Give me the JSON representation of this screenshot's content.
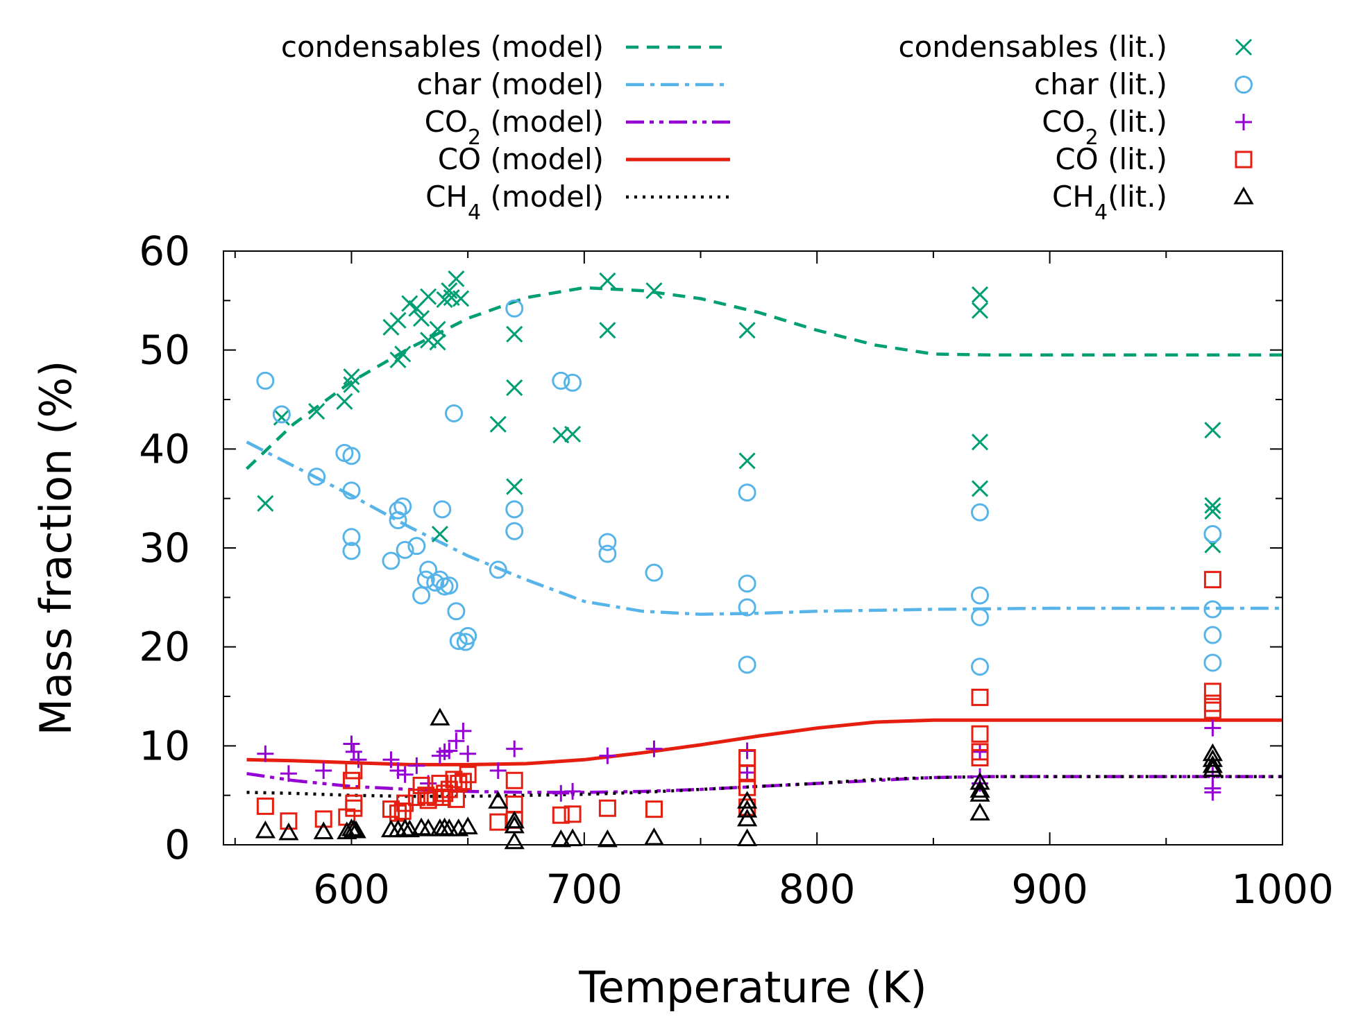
{
  "chart_data": {
    "type": "scatter",
    "title": "",
    "xlabel": "Temperature (K)",
    "ylabel": "Mass fraction (%)",
    "xlim": [
      545,
      1000
    ],
    "ylim": [
      0,
      60
    ],
    "xticks": [
      600,
      700,
      800,
      900,
      1000
    ],
    "yticks": [
      0,
      10,
      20,
      30,
      40,
      50,
      60
    ],
    "xtick_labels": [
      "600",
      "700",
      "800",
      "900",
      "1000"
    ],
    "ytick_labels": [
      "0",
      "10",
      "20",
      "30",
      "40",
      "50",
      "60"
    ],
    "grid": false,
    "legend_position": "top",
    "model_series": [
      {
        "name": "condensables (model)",
        "label_main": "condensables",
        "label_sub": "",
        "label_tail": " (model)",
        "color": "#009e73",
        "dash": "18,12",
        "x": [
          555,
          575,
          600,
          625,
          650,
          675,
          700,
          725,
          750,
          775,
          800,
          825,
          850,
          875,
          900,
          950,
          1000
        ],
        "y": [
          38.0,
          42.5,
          46.8,
          50.2,
          53.2,
          55.3,
          56.3,
          56.0,
          55.2,
          53.8,
          52.0,
          50.5,
          49.6,
          49.5,
          49.5,
          49.5,
          49.5
        ]
      },
      {
        "name": "char (model)",
        "label_main": "char",
        "label_sub": "",
        "label_tail": " (model)",
        "color": "#56b4e9",
        "dash": "26,9,6,9",
        "x": [
          555,
          575,
          600,
          625,
          650,
          675,
          700,
          725,
          750,
          775,
          800,
          850,
          900,
          950,
          1000
        ],
        "y": [
          40.7,
          38.3,
          35.3,
          32.1,
          29.2,
          26.8,
          24.6,
          23.6,
          23.3,
          23.4,
          23.6,
          23.8,
          23.9,
          23.9,
          23.9
        ]
      },
      {
        "name": "CO2 (model)",
        "label_main": "CO",
        "label_sub": "2",
        "label_tail": " (model)",
        "color": "#9400d3",
        "dash": "26,8,6,8,6,8",
        "x": [
          555,
          575,
          600,
          625,
          650,
          675,
          700,
          725,
          750,
          775,
          800,
          825,
          850,
          875,
          900,
          950,
          1000
        ],
        "y": [
          7.2,
          6.5,
          5.9,
          5.6,
          5.4,
          5.3,
          5.3,
          5.4,
          5.6,
          5.9,
          6.2,
          6.5,
          6.8,
          6.9,
          6.9,
          6.9,
          6.9
        ]
      },
      {
        "name": "CO (model)",
        "label_main": "CO",
        "label_sub": "",
        "label_tail": " (model)",
        "color": "#e51e10",
        "dash": "",
        "x": [
          555,
          575,
          600,
          625,
          650,
          675,
          700,
          725,
          750,
          775,
          800,
          825,
          850,
          875,
          900,
          950,
          1000
        ],
        "y": [
          8.6,
          8.5,
          8.3,
          8.1,
          8.1,
          8.2,
          8.6,
          9.3,
          10.1,
          11.0,
          11.8,
          12.4,
          12.6,
          12.6,
          12.6,
          12.6,
          12.6
        ]
      },
      {
        "name": "CH4 (model)",
        "label_main": "CH",
        "label_sub": "4",
        "label_tail": " (model)",
        "color": "#000000",
        "dash": "4,8",
        "x": [
          555,
          575,
          600,
          625,
          650,
          675,
          700,
          725,
          750,
          775,
          800,
          825,
          850,
          875,
          900,
          950,
          1000
        ],
        "y": [
          5.3,
          5.2,
          5.0,
          4.9,
          4.9,
          5.0,
          5.1,
          5.3,
          5.6,
          5.9,
          6.2,
          6.6,
          6.8,
          6.9,
          6.9,
          6.9,
          6.9
        ]
      }
    ],
    "literature_series": [
      {
        "name": "condensables (lit.)",
        "label_main": "condensables",
        "label_sub": "",
        "label_tail": " (lit.)",
        "color": "#009e73",
        "marker": "x",
        "points": [
          [
            563,
            34.5
          ],
          [
            570,
            43.2
          ],
          [
            585,
            43.8
          ],
          [
            597,
            44.8
          ],
          [
            600,
            46.5
          ],
          [
            600,
            47.3
          ],
          [
            617,
            52.3
          ],
          [
            620,
            53.0
          ],
          [
            620,
            49.0
          ],
          [
            622,
            49.6
          ],
          [
            625,
            54.7
          ],
          [
            628,
            54.2
          ],
          [
            630,
            53.2
          ],
          [
            633,
            51.0
          ],
          [
            633,
            55.4
          ],
          [
            637,
            52.1
          ],
          [
            637,
            50.8
          ],
          [
            640,
            55.1
          ],
          [
            642,
            56.0
          ],
          [
            643,
            55.3
          ],
          [
            645,
            57.2
          ],
          [
            647,
            55.2
          ],
          [
            638,
            31.4
          ],
          [
            663,
            42.5
          ],
          [
            670,
            51.6
          ],
          [
            670,
            46.2
          ],
          [
            670,
            36.2
          ],
          [
            690,
            41.4
          ],
          [
            695,
            41.5
          ],
          [
            710,
            57.0
          ],
          [
            710,
            52.0
          ],
          [
            730,
            56.0
          ],
          [
            770,
            52.0
          ],
          [
            770,
            38.8
          ],
          [
            870,
            55.6
          ],
          [
            870,
            54.0
          ],
          [
            870,
            40.7
          ],
          [
            870,
            36.0
          ],
          [
            970,
            41.9
          ],
          [
            970,
            34.3
          ],
          [
            970,
            33.7
          ],
          [
            970,
            30.3
          ]
        ]
      },
      {
        "name": "char (lit.)",
        "label_main": "char",
        "label_sub": "",
        "label_tail": " (lit.)",
        "color": "#56b4e9",
        "marker": "o",
        "points": [
          [
            563,
            46.9
          ],
          [
            570,
            43.5
          ],
          [
            585,
            37.2
          ],
          [
            597,
            39.6
          ],
          [
            600,
            39.3
          ],
          [
            600,
            35.8
          ],
          [
            600,
            31.1
          ],
          [
            600,
            29.7
          ],
          [
            617,
            28.7
          ],
          [
            620,
            33.8
          ],
          [
            620,
            32.8
          ],
          [
            622,
            34.2
          ],
          [
            623,
            29.8
          ],
          [
            628,
            30.2
          ],
          [
            630,
            25.2
          ],
          [
            632,
            26.8
          ],
          [
            633,
            27.8
          ],
          [
            636,
            26.5
          ],
          [
            638,
            26.8
          ],
          [
            639,
            33.9
          ],
          [
            640,
            26.1
          ],
          [
            642,
            26.2
          ],
          [
            644,
            43.6
          ],
          [
            645,
            23.6
          ],
          [
            646,
            20.6
          ],
          [
            649,
            20.5
          ],
          [
            650,
            21.1
          ],
          [
            663,
            27.8
          ],
          [
            670,
            54.2
          ],
          [
            670,
            33.9
          ],
          [
            670,
            31.7
          ],
          [
            690,
            46.9
          ],
          [
            695,
            46.7
          ],
          [
            710,
            30.6
          ],
          [
            710,
            29.4
          ],
          [
            730,
            27.5
          ],
          [
            770,
            35.6
          ],
          [
            770,
            26.4
          ],
          [
            770,
            24.0
          ],
          [
            770,
            18.2
          ],
          [
            870,
            33.6
          ],
          [
            870,
            25.2
          ],
          [
            870,
            23.0
          ],
          [
            870,
            18.0
          ],
          [
            970,
            31.4
          ],
          [
            970,
            23.8
          ],
          [
            970,
            21.2
          ],
          [
            970,
            18.4
          ]
        ]
      },
      {
        "name": "CO2 (lit.)",
        "label_main": "CO",
        "label_sub": "2",
        "label_tail": " (lit.)",
        "color": "#9400d3",
        "marker": "+",
        "points": [
          [
            563,
            9.2
          ],
          [
            573,
            7.2
          ],
          [
            588,
            7.5
          ],
          [
            600,
            10.2
          ],
          [
            601,
            9.4
          ],
          [
            603,
            8.6
          ],
          [
            617,
            8.6
          ],
          [
            620,
            7.5
          ],
          [
            623,
            7.1
          ],
          [
            628,
            8.0
          ],
          [
            633,
            6.2
          ],
          [
            638,
            9.0
          ],
          [
            640,
            9.4
          ],
          [
            642,
            9.5
          ],
          [
            645,
            10.5
          ],
          [
            648,
            11.5
          ],
          [
            650,
            9.2
          ],
          [
            663,
            7.5
          ],
          [
            670,
            9.7
          ],
          [
            690,
            5.2
          ],
          [
            695,
            5.4
          ],
          [
            710,
            9.0
          ],
          [
            730,
            9.7
          ],
          [
            770,
            9.5
          ],
          [
            770,
            7.3
          ],
          [
            870,
            9.4
          ],
          [
            870,
            6.9
          ],
          [
            870,
            6.2
          ],
          [
            970,
            11.8
          ],
          [
            970,
            7.0
          ],
          [
            970,
            5.7
          ],
          [
            970,
            5.3
          ]
        ]
      },
      {
        "name": "CO (lit.)",
        "label_main": "CO",
        "label_sub": "",
        "label_tail": " (lit.)",
        "color": "#e51e10",
        "marker": "s",
        "points": [
          [
            563,
            3.9
          ],
          [
            573,
            2.4
          ],
          [
            588,
            2.6
          ],
          [
            598,
            2.8
          ],
          [
            600,
            6.5
          ],
          [
            601,
            7.5
          ],
          [
            601,
            4.2
          ],
          [
            601,
            3.7
          ],
          [
            617,
            3.6
          ],
          [
            620,
            3.2
          ],
          [
            622,
            3.4
          ],
          [
            623,
            4.2
          ],
          [
            628,
            4.8
          ],
          [
            630,
            6.0
          ],
          [
            632,
            5.0
          ],
          [
            633,
            4.5
          ],
          [
            636,
            4.8
          ],
          [
            638,
            6.2
          ],
          [
            639,
            4.8
          ],
          [
            640,
            5.2
          ],
          [
            642,
            5.6
          ],
          [
            644,
            6.6
          ],
          [
            645,
            4.6
          ],
          [
            646,
            6.2
          ],
          [
            648,
            6.4
          ],
          [
            650,
            7.1
          ],
          [
            663,
            2.3
          ],
          [
            670,
            6.5
          ],
          [
            670,
            4.1
          ],
          [
            670,
            2.5
          ],
          [
            690,
            3.0
          ],
          [
            695,
            3.1
          ],
          [
            710,
            3.7
          ],
          [
            730,
            3.6
          ],
          [
            770,
            8.8
          ],
          [
            770,
            7.2
          ],
          [
            770,
            5.8
          ],
          [
            770,
            3.8
          ],
          [
            870,
            14.9
          ],
          [
            870,
            11.2
          ],
          [
            870,
            9.4
          ],
          [
            870,
            8.8
          ],
          [
            970,
            26.8
          ],
          [
            970,
            15.5
          ],
          [
            970,
            14.3
          ],
          [
            970,
            13.6
          ]
        ]
      },
      {
        "name": "CH4 (lit.)",
        "label_main": "CH",
        "label_sub": "4",
        "label_tail": "(lit.)",
        "color": "#000000",
        "marker": "^",
        "points": [
          [
            563,
            1.4
          ],
          [
            573,
            1.2
          ],
          [
            588,
            1.3
          ],
          [
            598,
            1.3
          ],
          [
            600,
            1.6
          ],
          [
            601,
            1.5
          ],
          [
            602,
            1.4
          ],
          [
            617,
            1.5
          ],
          [
            620,
            1.5
          ],
          [
            623,
            1.6
          ],
          [
            625,
            1.5
          ],
          [
            630,
            1.7
          ],
          [
            633,
            1.6
          ],
          [
            638,
            1.6
          ],
          [
            638,
            12.8
          ],
          [
            640,
            1.7
          ],
          [
            642,
            1.6
          ],
          [
            646,
            1.6
          ],
          [
            650,
            1.8
          ],
          [
            663,
            4.4
          ],
          [
            670,
            2.4
          ],
          [
            670,
            1.9
          ],
          [
            670,
            0.3
          ],
          [
            690,
            0.5
          ],
          [
            695,
            0.6
          ],
          [
            710,
            0.5
          ],
          [
            730,
            0.7
          ],
          [
            770,
            4.4
          ],
          [
            770,
            3.5
          ],
          [
            770,
            2.6
          ],
          [
            770,
            0.6
          ],
          [
            870,
            6.3
          ],
          [
            870,
            5.5
          ],
          [
            870,
            5.1
          ],
          [
            870,
            3.2
          ],
          [
            970,
            9.2
          ],
          [
            970,
            8.6
          ],
          [
            970,
            8.0
          ],
          [
            970,
            7.6
          ]
        ]
      }
    ]
  }
}
